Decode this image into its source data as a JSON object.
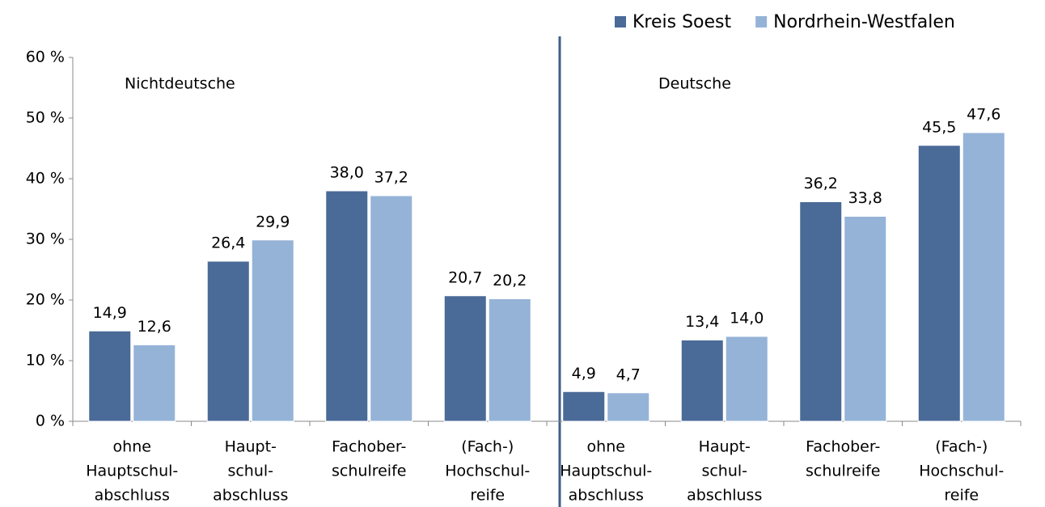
{
  "chart_data": {
    "type": "bar",
    "categories": [
      [
        "ohne",
        "Hauptschul-",
        "abschluss"
      ],
      [
        "Haupt-",
        "schul-",
        "abschluss"
      ],
      [
        "Fachober-",
        "schulreife"
      ],
      [
        "(Fach-)",
        "Hochschul-",
        "reife"
      ],
      [
        "ohne",
        "Hauptschul-",
        "abschluss"
      ],
      [
        "Haupt-",
        "schul-",
        "abschluss"
      ],
      [
        "Fachober-",
        "schulreife"
      ],
      [
        "(Fach-)",
        "Hochschul-",
        "reife"
      ]
    ],
    "series": [
      {
        "name": "Kreis Soest",
        "color": "#4a6a97",
        "values": [
          14.9,
          26.4,
          38.0,
          20.7,
          4.9,
          13.4,
          36.2,
          45.5
        ],
        "value_labels": [
          "14,9",
          "26,4",
          "38,0",
          "20,7",
          "4,9",
          "13,4",
          "36,2",
          "45,5"
        ]
      },
      {
        "name": "Nordrhein-Westfalen",
        "color": "#95b3d7",
        "values": [
          12.6,
          29.9,
          37.2,
          20.2,
          4.7,
          14.0,
          33.8,
          47.6
        ],
        "value_labels": [
          "12,6",
          "29,9",
          "37,2",
          "20,2",
          "4,7",
          "14,0",
          "33,8",
          "47,6"
        ]
      }
    ],
    "annotations": [
      "Nichtdeutsche",
      "Deutsche"
    ],
    "ylim": [
      0,
      60
    ],
    "yticks": [
      {
        "value": 0,
        "label": "0 %"
      },
      {
        "value": 10,
        "label": "10 %"
      },
      {
        "value": 20,
        "label": "20 %"
      },
      {
        "value": 30,
        "label": "30 %"
      },
      {
        "value": 40,
        "label": "40 %"
      },
      {
        "value": 50,
        "label": "50 %"
      },
      {
        "value": 60,
        "label": "60 %"
      }
    ],
    "grid": false,
    "legend": "top-right"
  }
}
